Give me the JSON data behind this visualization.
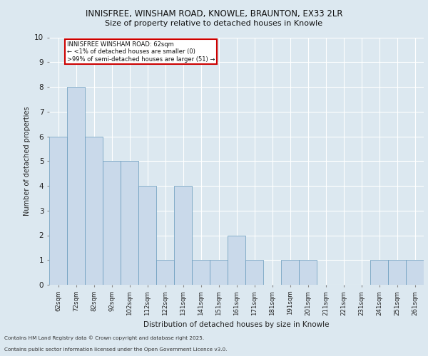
{
  "title_line1": "INNISFREE, WINSHAM ROAD, KNOWLE, BRAUNTON, EX33 2LR",
  "title_line2": "Size of property relative to detached houses in Knowle",
  "xlabel": "Distribution of detached houses by size in Knowle",
  "ylabel": "Number of detached properties",
  "categories": [
    "62sqm",
    "72sqm",
    "82sqm",
    "92sqm",
    "102sqm",
    "112sqm",
    "122sqm",
    "131sqm",
    "141sqm",
    "151sqm",
    "161sqm",
    "171sqm",
    "181sqm",
    "191sqm",
    "201sqm",
    "211sqm",
    "221sqm",
    "231sqm",
    "241sqm",
    "251sqm",
    "261sqm"
  ],
  "values": [
    6,
    8,
    6,
    5,
    5,
    4,
    1,
    4,
    1,
    1,
    2,
    1,
    0,
    1,
    1,
    0,
    0,
    0,
    1,
    1,
    1
  ],
  "bar_color": "#c9d9ea",
  "bar_edge_color": "#6699bb",
  "annotation_text_line1": "INNISFREE WINSHAM ROAD: 62sqm",
  "annotation_text_line2": "← <1% of detached houses are smaller (0)",
  "annotation_text_line3": ">99% of semi-detached houses are larger (51) →",
  "annotation_box_facecolor": "#ffffff",
  "annotation_box_edgecolor": "#cc0000",
  "ylim": [
    0,
    10
  ],
  "yticks": [
    0,
    1,
    2,
    3,
    4,
    5,
    6,
    7,
    8,
    9,
    10
  ],
  "background_color": "#dce8f0",
  "grid_color": "#ffffff",
  "fig_background": "#dce8f0",
  "footer_line1": "Contains HM Land Registry data © Crown copyright and database right 2025.",
  "footer_line2": "Contains public sector information licensed under the Open Government Licence v3.0."
}
